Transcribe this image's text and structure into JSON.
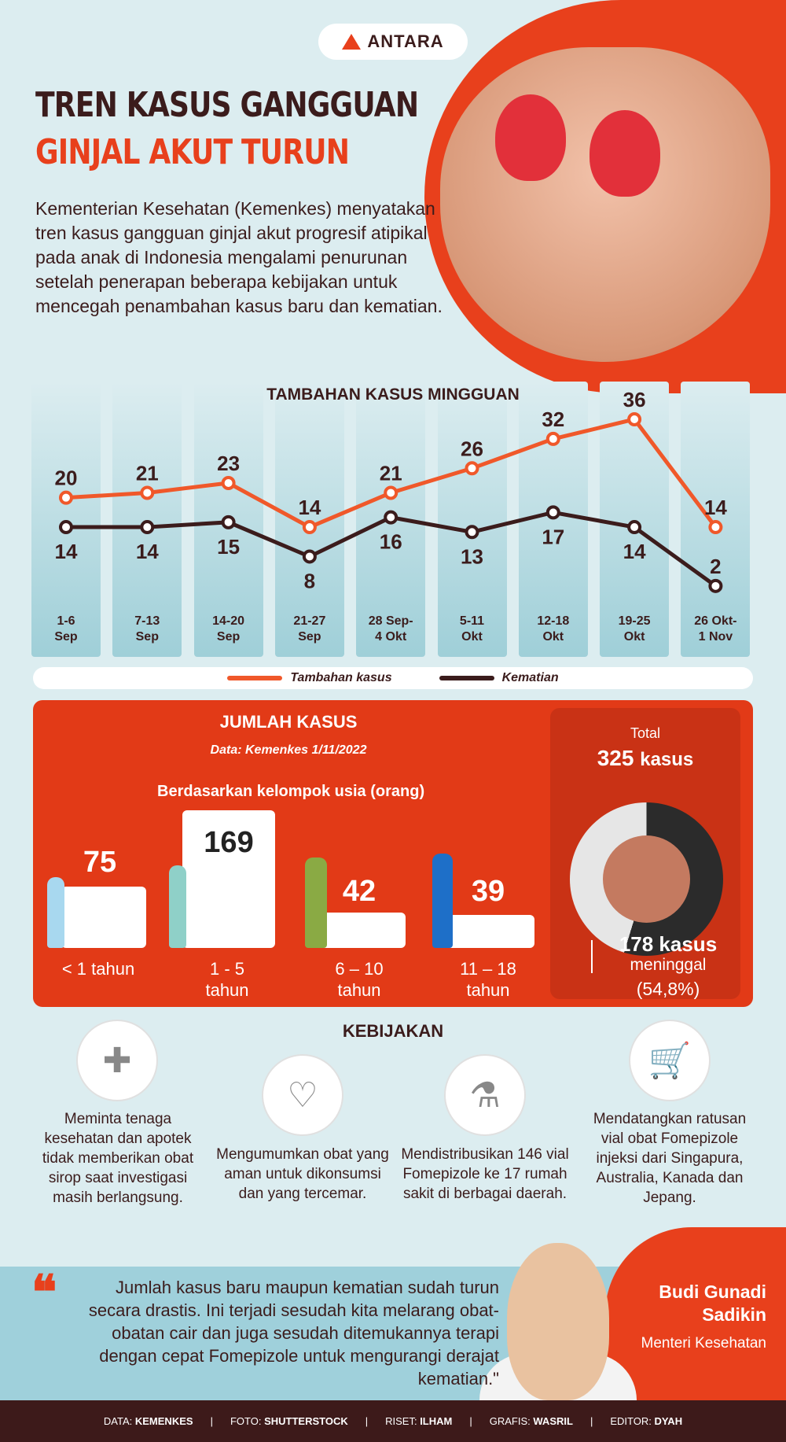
{
  "logo": "ANTARA",
  "title_line1": "TREN KASUS GANGGUAN",
  "title_line2": "GINJAL AKUT TURUN",
  "intro": "Kementerian Kesehatan (Kemenkes) menyatakan tren kasus gangguan ginjal akut progresif atipikal pada anak di Indonesia mengalami penurunan setelah penerapan beberapa kebijakan untuk mencegah penambahan kasus baru dan kematian.",
  "chart_data": {
    "type": "line",
    "title": "TAMBAHAN KASUS MINGGUAN",
    "categories": [
      "1-6 Sep",
      "7-13 Sep",
      "14-20 Sep",
      "21-27 Sep",
      "28 Sep-4 Okt",
      "5-11 Okt",
      "12-18 Okt",
      "19-25 Okt",
      "26 Okt-1 Nov"
    ],
    "category_lines": [
      [
        "1-6",
        "Sep"
      ],
      [
        "7-13",
        "Sep"
      ],
      [
        "14-20",
        "Sep"
      ],
      [
        "21-27",
        "Sep"
      ],
      [
        "28 Sep-",
        "4 Okt"
      ],
      [
        "5-11",
        "Okt"
      ],
      [
        "12-18",
        "Okt"
      ],
      [
        "19-25",
        "Okt"
      ],
      [
        "26 Okt-",
        "1 Nov"
      ]
    ],
    "series": [
      {
        "name": "Tambahan kasus",
        "color": "#f0582a",
        "values": [
          20,
          21,
          23,
          14,
          21,
          26,
          32,
          36,
          14
        ]
      },
      {
        "name": "Kematian",
        "color": "#3b1c1c",
        "values": [
          14,
          14,
          15,
          8,
          16,
          13,
          17,
          14,
          2
        ]
      }
    ],
    "legend": "bottom"
  },
  "jumlah": {
    "title": "JUMLAH KASUS",
    "source": "Data: Kemenkes 1/11/2022",
    "subtitle": "Berdasarkan kelompok usia (orang)",
    "groups": [
      {
        "value": "75",
        "label1": "< 1 tahun",
        "label2": ""
      },
      {
        "value": "169",
        "label1": "1 - 5",
        "label2": "tahun"
      },
      {
        "value": "42",
        "label1": "6 – 10",
        "label2": "tahun"
      },
      {
        "value": "39",
        "label1": "11 – 18",
        "label2": "tahun"
      }
    ],
    "total_label": "Total",
    "total_value": "325",
    "total_unit": "kasus",
    "death_value": "178 kasus",
    "death_label": "meninggal",
    "death_pct": "(54,8%)"
  },
  "kebijakan": {
    "title": "KEBIJAKAN",
    "items": [
      "Meminta tenaga kesehatan dan apotek tidak memberikan obat sirop saat investigasi masih berlangsung.",
      "Mengumumkan obat yang aman untuk dikonsumsi dan yang tercemar.",
      "Mendistribusikan 146 vial Fomepizole ke 17 rumah sakit di berbagai daerah.",
      "Mendatangkan ratusan vial obat Fomepizole injeksi dari Singapura, Australia, Kanada dan Jepang."
    ]
  },
  "quote": {
    "mark": "❝",
    "text": "Jumlah kasus baru maupun kematian sudah turun secara drastis. Ini terjadi sesudah kita melarang obat-obatan cair dan juga sesudah ditemukannya terapi dengan cepat Fomepizole untuk mengurangi derajat kematian.\"",
    "name": "Budi Gunadi Sadikin",
    "role": "Menteri Kesehatan"
  },
  "footer": [
    {
      "k": "DATA:",
      "v": "KEMENKES"
    },
    {
      "k": "FOTO:",
      "v": "SHUTTERSTOCK"
    },
    {
      "k": "RISET:",
      "v": "ILHAM"
    },
    {
      "k": "GRAFIS:",
      "v": "WASRIL"
    },
    {
      "k": "EDITOR:",
      "v": "DYAH"
    }
  ]
}
